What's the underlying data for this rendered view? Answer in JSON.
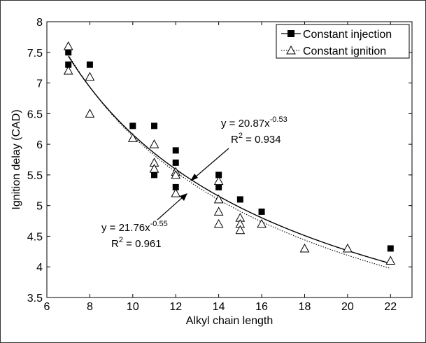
{
  "chart_data": {
    "type": "scatter",
    "title": "",
    "xlabel": "Alkyl chain length",
    "ylabel": "Ignition delay (CAD)",
    "xlim": [
      6,
      23
    ],
    "ylim": [
      3.5,
      8
    ],
    "xticks": [
      "6",
      "8",
      "10",
      "12",
      "14",
      "16",
      "18",
      "20",
      "22"
    ],
    "yticks": [
      "3.5",
      "4",
      "4.5",
      "5",
      "5.5",
      "6",
      "6.5",
      "7",
      "7.5",
      "8"
    ],
    "grid": false,
    "legend_position": "top-right",
    "series": [
      {
        "name": "Constant injection",
        "marker": "filled-square",
        "line_style": "solid",
        "color": "#000000",
        "points": [
          [
            7,
            7.5
          ],
          [
            7,
            7.3
          ],
          [
            8,
            7.3
          ],
          [
            10,
            6.3
          ],
          [
            11,
            6.3
          ],
          [
            11,
            5.5
          ],
          [
            12,
            5.9
          ],
          [
            12,
            5.7
          ],
          [
            12,
            5.3
          ],
          [
            14,
            5.5
          ],
          [
            14,
            5.3
          ],
          [
            15,
            5.1
          ],
          [
            16,
            4.9
          ],
          [
            22,
            4.3
          ]
        ],
        "fit": {
          "a": 20.87,
          "b": -0.53
        }
      },
      {
        "name": "Constant ignition",
        "marker": "open-triangle",
        "line_style": "dotted",
        "color": "#000000",
        "points": [
          [
            7,
            7.6
          ],
          [
            7,
            7.2
          ],
          [
            8,
            7.1
          ],
          [
            8,
            6.5
          ],
          [
            10,
            6.1
          ],
          [
            11,
            6.0
          ],
          [
            11,
            5.7
          ],
          [
            11,
            5.6
          ],
          [
            12,
            5.55
          ],
          [
            12,
            5.5
          ],
          [
            12,
            5.2
          ],
          [
            14,
            5.4
          ],
          [
            14,
            5.1
          ],
          [
            14,
            4.9
          ],
          [
            14,
            4.7
          ],
          [
            15,
            4.8
          ],
          [
            15,
            4.7
          ],
          [
            15,
            4.6
          ],
          [
            16,
            4.7
          ],
          [
            18,
            4.3
          ],
          [
            20,
            4.3
          ],
          [
            22,
            4.1
          ]
        ],
        "fit": {
          "a": 21.76,
          "b": -0.55
        }
      }
    ],
    "annotations": [
      {
        "eq_prefix": "y = 20.87x",
        "exponent": "-0.53",
        "r2_prefix": "R",
        "r2_power": "2",
        "r2_value": " = 0.934"
      },
      {
        "eq_prefix": "y = 21.76x",
        "exponent": "-0.55",
        "r2_prefix": "R",
        "r2_power": "2",
        "r2_value": " = 0.961"
      }
    ]
  }
}
